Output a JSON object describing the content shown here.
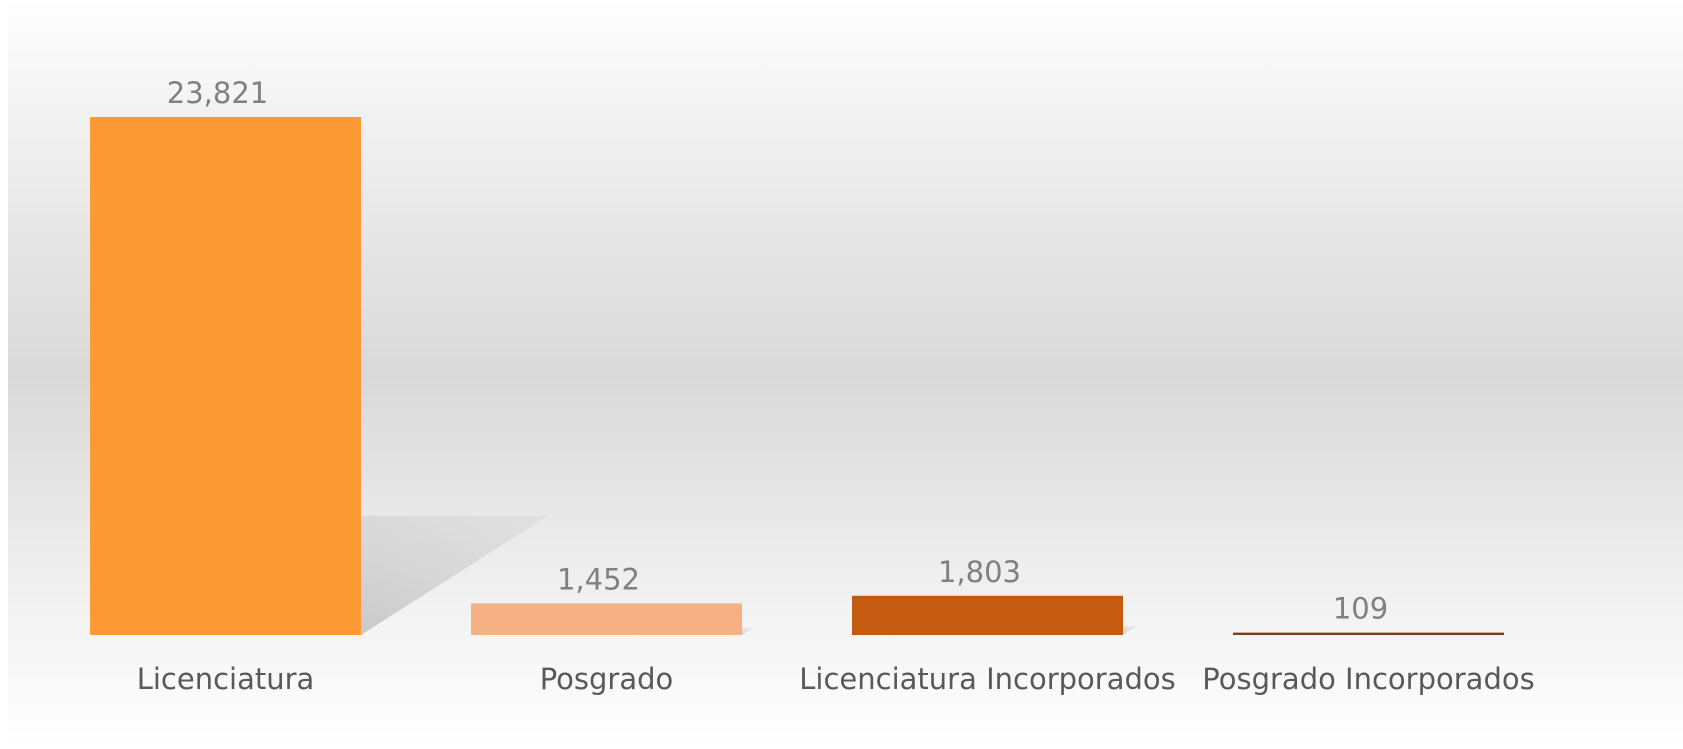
{
  "chart_data": {
    "type": "bar",
    "categories": [
      "Licenciatura",
      "Posgrado",
      "Licenciatura Incorporados",
      "Posgrado Incorporados"
    ],
    "values": [
      23821,
      1452,
      1803,
      109
    ],
    "value_labels": [
      "23,821",
      "1,452",
      "1,803",
      "109"
    ],
    "colors": [
      "#fd9a36",
      "#f4b183",
      "#c55a11",
      "#843c0c"
    ]
  }
}
